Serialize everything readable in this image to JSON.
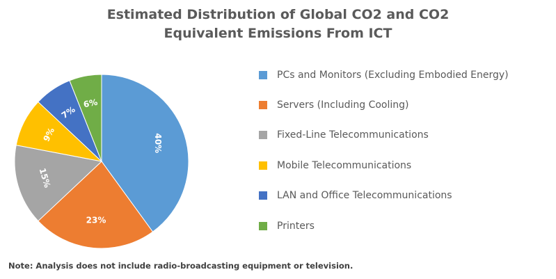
{
  "chart_data": {
    "type": "pie",
    "title_lines": [
      "Estimated Distribution of Global CO2 and CO2",
      "Equivalent Emissions From ICT"
    ],
    "slices": [
      {
        "name": "PCs and Monitors (Excluding Embodied Energy)",
        "value": 40,
        "label": "40%",
        "color": "#5b9bd5"
      },
      {
        "name": "Servers (Including Cooling)",
        "value": 23,
        "label": "23%",
        "color": "#ed7d31"
      },
      {
        "name": "Fixed-Line Telecommunications",
        "value": 15,
        "label": "15%",
        "color": "#a5a5a5"
      },
      {
        "name": "Mobile Telecommunications",
        "value": 9,
        "label": "9%",
        "color": "#ffc000"
      },
      {
        "name": "LAN and Office Telecommunications",
        "value": 7,
        "label": "7%",
        "color": "#4472c4"
      },
      {
        "name": "Printers",
        "value": 6,
        "label": "6%",
        "color": "#70ad47"
      }
    ],
    "legend_position": "right",
    "note": "Note: Analysis does not include radio-broadcasting equipment or television."
  }
}
